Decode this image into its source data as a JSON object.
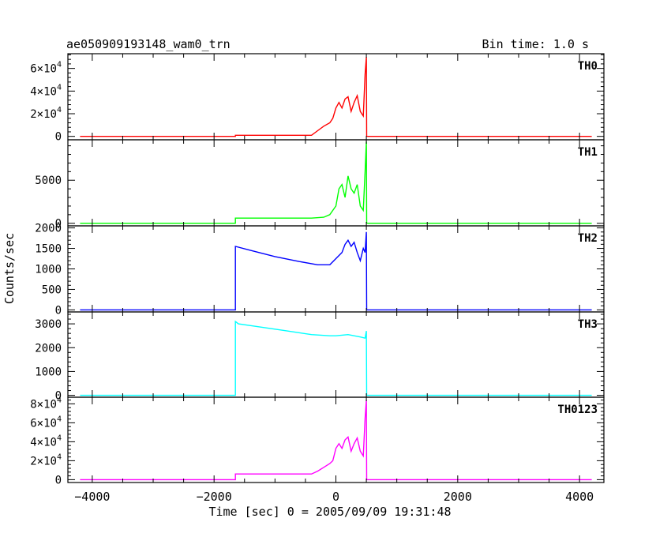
{
  "chart_data": {
    "type": "line",
    "title": "ae050909193148_wam0_trn",
    "bin_label": "Bin time: 1.0 s",
    "xlabel": "Time [sec] 0 = 2005/09/09 19:31:48",
    "ylabel": "Counts/sec",
    "xlim": [
      -4400,
      4400
    ],
    "x_ticks": [
      -4000,
      -2000,
      0,
      2000,
      4000
    ],
    "x_tick_labels": [
      "−4000",
      "−2000",
      "0",
      "2000",
      "4000"
    ],
    "grid": false,
    "panels": [
      {
        "name": "TH0",
        "color": "#ff0000",
        "ylim": [
          -3000,
          73000
        ],
        "ticks": [
          0,
          20000,
          40000,
          60000
        ],
        "tick_labels": [
          [
            "0",
            ""
          ],
          [
            "2×10",
            "4"
          ],
          [
            "4×10",
            "4"
          ],
          [
            "6×10",
            "4"
          ]
        ],
        "x": [
          -4200,
          -1650,
          -1650,
          -400,
          -300,
          -200,
          -100,
          -50,
          0,
          50,
          100,
          150,
          200,
          250,
          300,
          350,
          400,
          450,
          480,
          500,
          505,
          4200
        ],
        "y": [
          0,
          0,
          1000,
          1000,
          5000,
          9000,
          12000,
          16000,
          25000,
          30000,
          25000,
          33000,
          35000,
          22000,
          30000,
          36000,
          22000,
          18000,
          55000,
          70000,
          0,
          0
        ]
      },
      {
        "name": "TH1",
        "color": "#00ff00",
        "ylim": [
          -300,
          9700
        ],
        "ticks": [
          0,
          5000
        ],
        "tick_labels": [
          [
            "0",
            ""
          ],
          [
            "5000",
            ""
          ]
        ],
        "x": [
          -4200,
          -1650,
          -1650,
          -400,
          -200,
          -100,
          0,
          50,
          100,
          150,
          200,
          250,
          300,
          350,
          400,
          450,
          480,
          500,
          505,
          4200
        ],
        "y": [
          0,
          0,
          600,
          600,
          700,
          1000,
          2000,
          4000,
          4500,
          3000,
          5500,
          4000,
          3500,
          4500,
          2000,
          1500,
          6000,
          9500,
          0,
          0
        ]
      },
      {
        "name": "TH2",
        "color": "#0000ff",
        "ylim": [
          -50,
          2050
        ],
        "ticks": [
          0,
          500,
          1000,
          1500,
          2000
        ],
        "tick_labels": [
          [
            "0",
            ""
          ],
          [
            "500",
            ""
          ],
          [
            "1000",
            ""
          ],
          [
            "1500",
            ""
          ],
          [
            "2000",
            ""
          ]
        ],
        "x": [
          -4200,
          -1650,
          -1650,
          -1400,
          -1000,
          -600,
          -300,
          -100,
          0,
          100,
          150,
          200,
          250,
          300,
          350,
          400,
          450,
          480,
          500,
          505,
          4200
        ],
        "y": [
          0,
          0,
          1550,
          1450,
          1300,
          1180,
          1100,
          1100,
          1250,
          1400,
          1600,
          1700,
          1550,
          1650,
          1400,
          1200,
          1500,
          1400,
          1900,
          0,
          0
        ]
      },
      {
        "name": "TH3",
        "color": "#00ffff",
        "ylim": [
          -80,
          3500
        ],
        "ticks": [
          0,
          1000,
          2000,
          3000
        ],
        "tick_labels": [
          [
            "0",
            ""
          ],
          [
            "1000",
            ""
          ],
          [
            "2000",
            ""
          ],
          [
            "3000",
            ""
          ]
        ],
        "x": [
          -4200,
          -1650,
          -1650,
          -1600,
          -1200,
          -800,
          -400,
          -100,
          0,
          200,
          400,
          480,
          500,
          505,
          4200
        ],
        "y": [
          0,
          0,
          3100,
          3000,
          2850,
          2700,
          2550,
          2500,
          2500,
          2550,
          2450,
          2400,
          2700,
          0,
          0
        ]
      },
      {
        "name": "TH0123",
        "color": "#ff00ff",
        "ylim": [
          -3000,
          87000
        ],
        "ticks": [
          0,
          20000,
          40000,
          60000,
          80000
        ],
        "tick_labels": [
          [
            "0",
            ""
          ],
          [
            "2×10",
            "4"
          ],
          [
            "4×10",
            "4"
          ],
          [
            "6×10",
            "4"
          ],
          [
            "8×10",
            "4"
          ]
        ],
        "x": [
          -4200,
          -1650,
          -1650,
          -400,
          -300,
          -200,
          -100,
          -50,
          0,
          50,
          100,
          150,
          200,
          250,
          300,
          350,
          400,
          450,
          480,
          500,
          505,
          4200
        ],
        "y": [
          0,
          0,
          6000,
          6000,
          9000,
          13000,
          17000,
          20000,
          33000,
          38000,
          33000,
          42000,
          45000,
          30000,
          38000,
          44000,
          30000,
          25000,
          65000,
          84000,
          0,
          0
        ]
      }
    ]
  }
}
